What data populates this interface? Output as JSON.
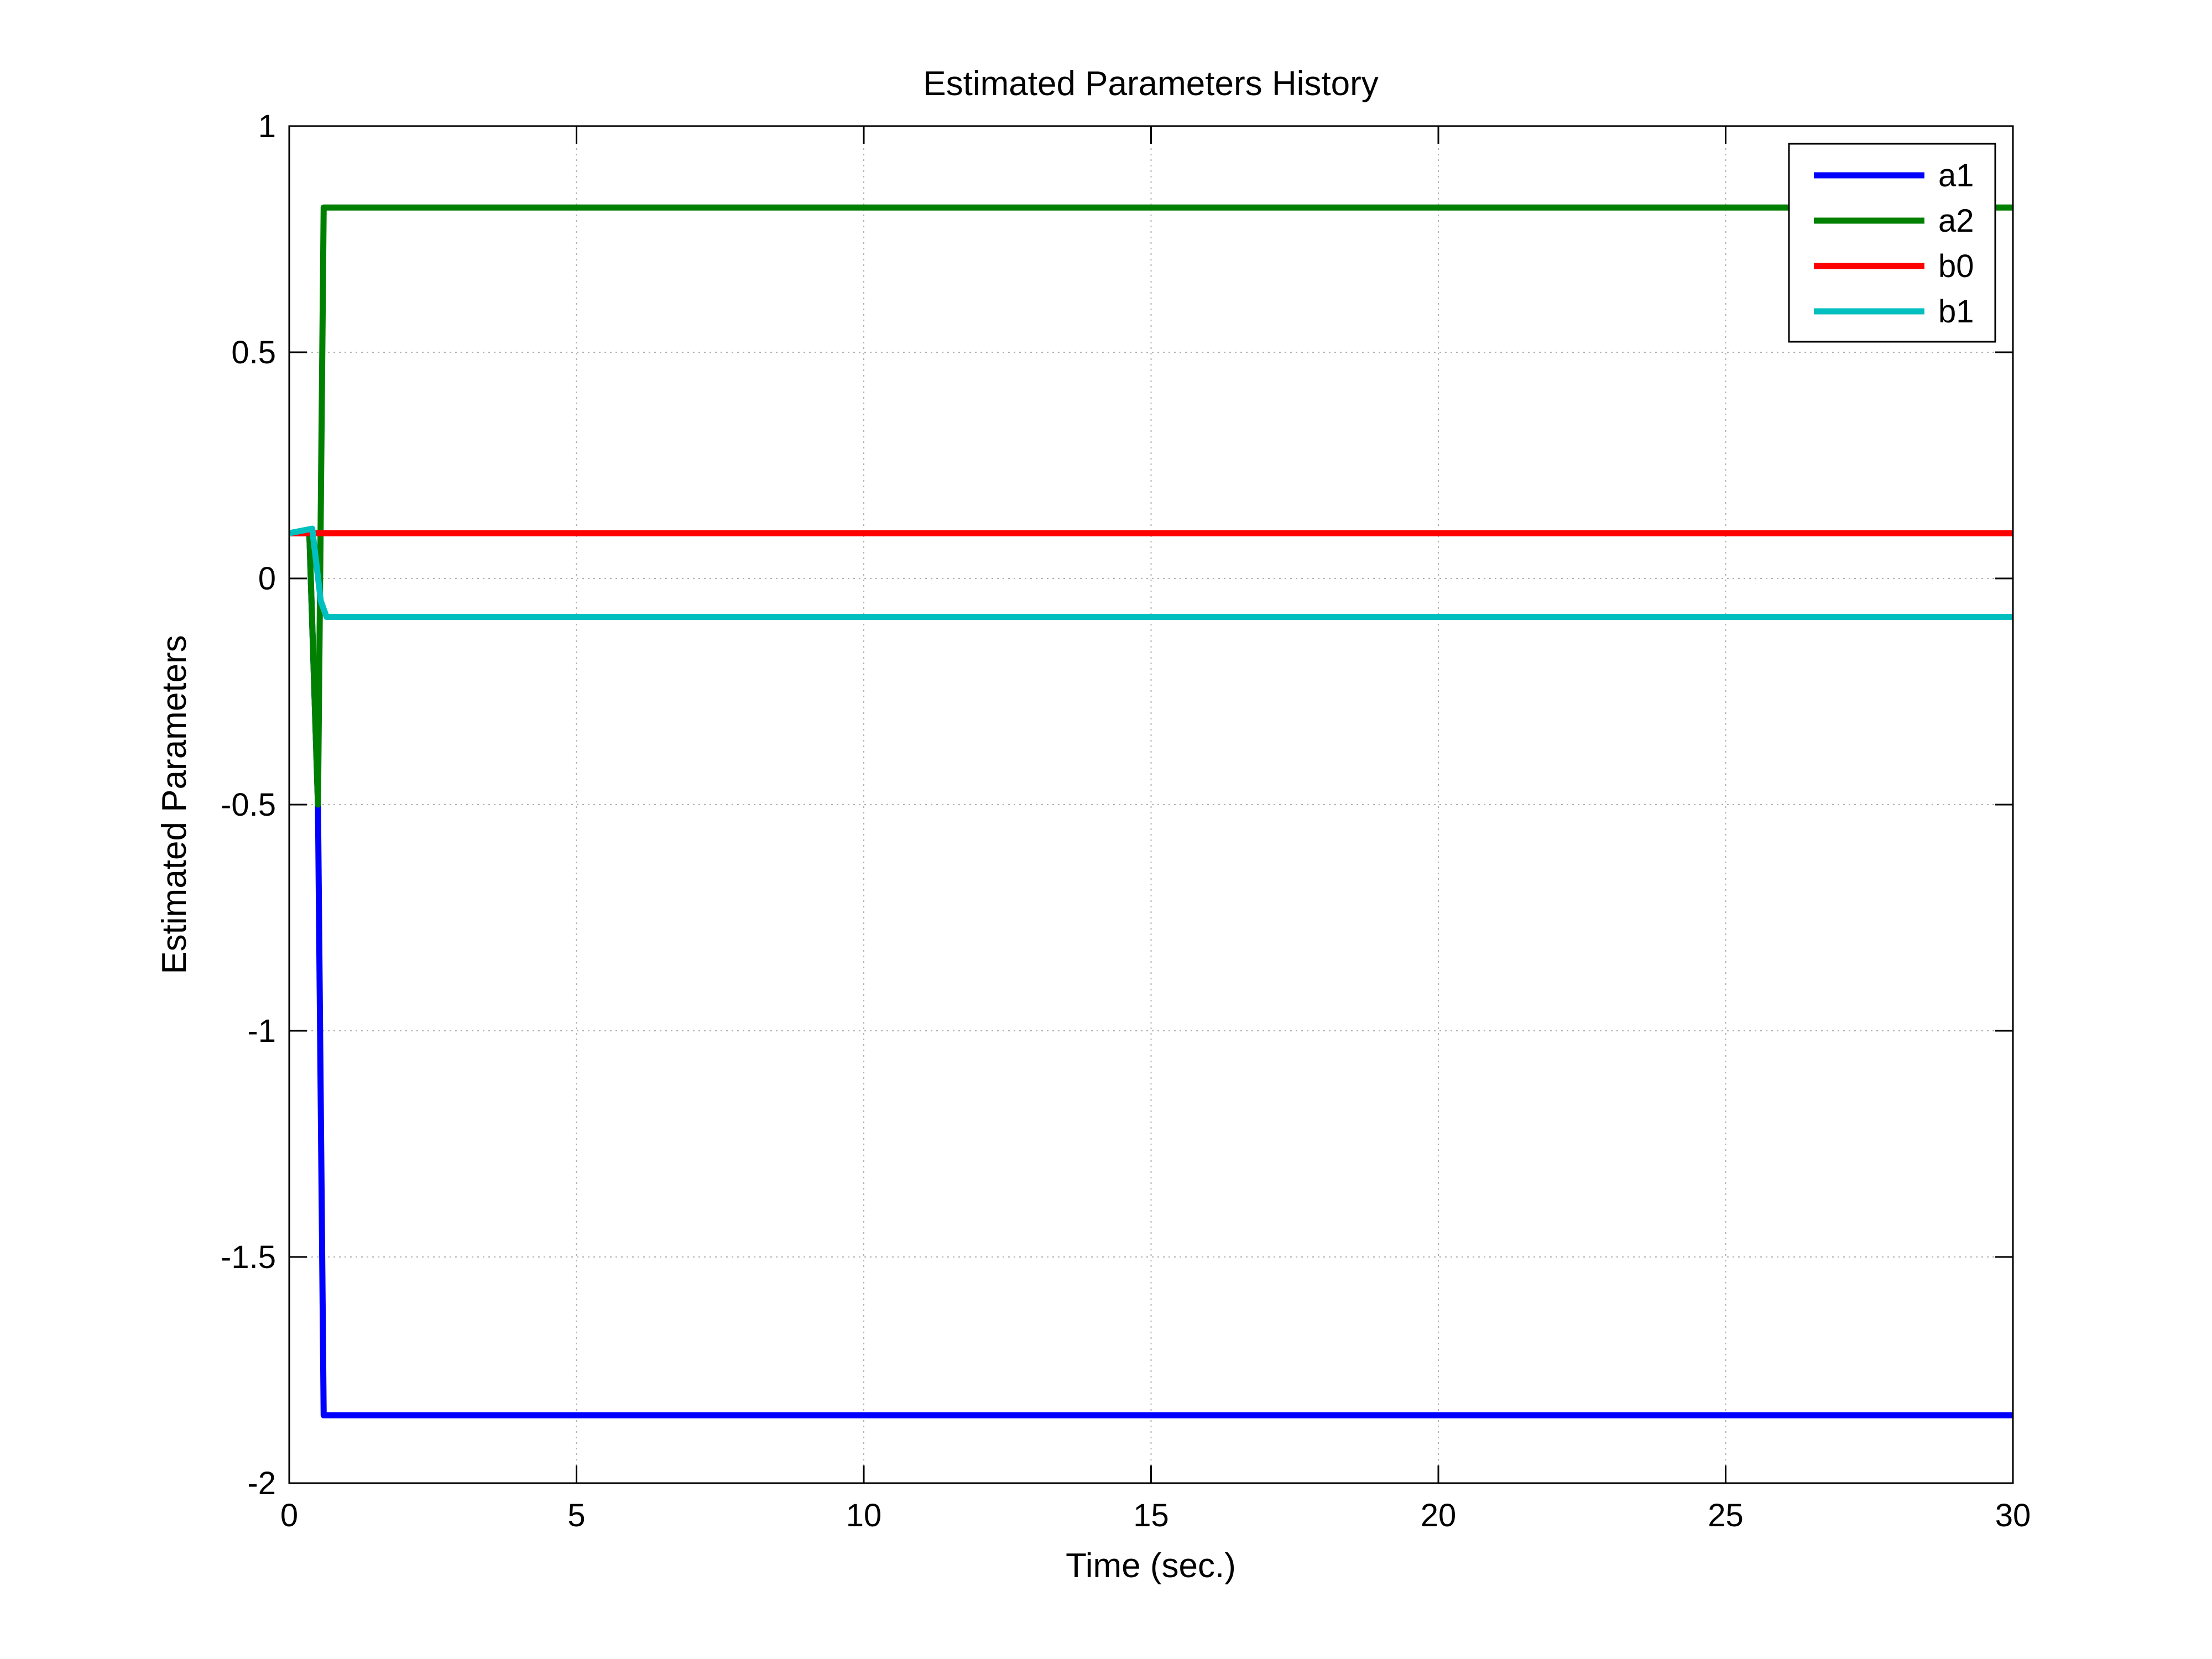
{
  "chart_data": {
    "type": "line",
    "title": "Estimated Parameters History",
    "xlabel": "Time (sec.)",
    "ylabel": "Estimated Parameters",
    "xlim": [
      0,
      30
    ],
    "ylim": [
      -2,
      1
    ],
    "xticks": [
      0,
      5,
      10,
      15,
      20,
      25,
      30
    ],
    "xtick_labels": [
      "0",
      "5",
      "10",
      "15",
      "20",
      "25",
      "30"
    ],
    "yticks": [
      1,
      0.5,
      0,
      -0.5,
      -1,
      -1.5,
      -2
    ],
    "ytick_labels": [
      "1",
      "0.5",
      "0",
      "-0.5",
      "-1",
      "-1.5",
      "-2"
    ],
    "grid": true,
    "legend_position": "top-right",
    "series": [
      {
        "name": "a1",
        "color": "#0000FF",
        "x": [
          0,
          0.35,
          0.5,
          0.6,
          0.65,
          30
        ],
        "y": [
          0.1,
          0.1,
          -0.5,
          -1.85,
          -1.85,
          -1.85
        ]
      },
      {
        "name": "a2",
        "color": "#008000",
        "x": [
          0,
          0.35,
          0.5,
          0.6,
          0.7,
          30
        ],
        "y": [
          0.1,
          0.1,
          -0.5,
          0.82,
          0.82,
          0.82
        ]
      },
      {
        "name": "b0",
        "color": "#FF0000",
        "x": [
          0,
          30
        ],
        "y": [
          0.1,
          0.1
        ]
      },
      {
        "name": "b1",
        "color": "#00BFBF",
        "x": [
          0,
          0.4,
          0.55,
          0.65,
          30
        ],
        "y": [
          0.1,
          0.11,
          -0.05,
          -0.085,
          -0.085
        ]
      }
    ]
  }
}
